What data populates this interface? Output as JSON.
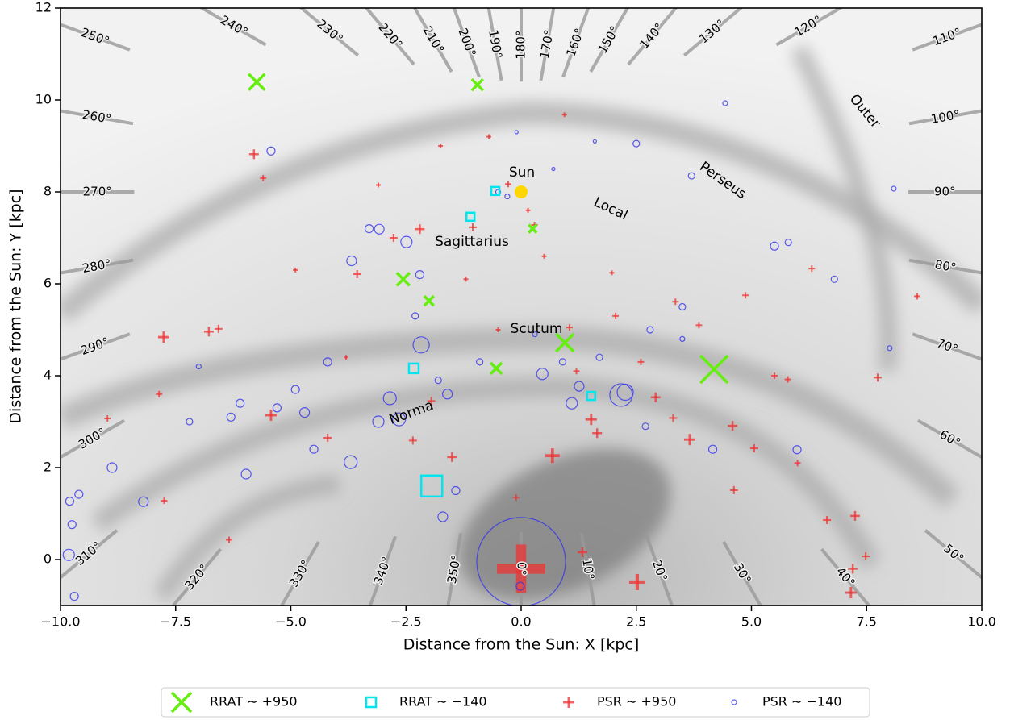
{
  "chart_data": {
    "type": "scatter",
    "xlabel": "Distance from the Sun: X [kpc]",
    "ylabel": "Distance from the Sun: Y [kpc]",
    "xlim": [
      -10,
      10
    ],
    "ylim": [
      -1,
      12
    ],
    "xticks": [
      {
        "value": -10,
        "label": "−10.0"
      },
      {
        "value": -7.5,
        "label": "−7.5"
      },
      {
        "value": -5,
        "label": "−5.0"
      },
      {
        "value": -2.5,
        "label": "−2.5"
      },
      {
        "value": 0,
        "label": "0.0"
      },
      {
        "value": 2.5,
        "label": "2.5"
      },
      {
        "value": 5,
        "label": "5.0"
      },
      {
        "value": 7.5,
        "label": "7.5"
      },
      {
        "value": 10,
        "label": "10.0"
      }
    ],
    "yticks": [
      0,
      2,
      4,
      6,
      8,
      10,
      12
    ],
    "legend": "bottom",
    "sun": {
      "label": "Sun",
      "x": 0,
      "y": 8,
      "color": "#ffd700"
    },
    "arm_labels": [
      "Local",
      "Perseus",
      "Sagittarius",
      "Scutum",
      "Norma",
      "Outer"
    ],
    "longitudes": [
      {
        "value": 0,
        "label": "0°"
      },
      {
        "value": 10,
        "label": "10°"
      },
      {
        "value": 20,
        "label": "20°"
      },
      {
        "value": 30,
        "label": "30°"
      },
      {
        "value": 40,
        "label": "40°"
      },
      {
        "value": 50,
        "label": "50°"
      },
      {
        "value": 60,
        "label": "60°"
      },
      {
        "value": 70,
        "label": "70°"
      },
      {
        "value": 80,
        "label": "80°"
      },
      {
        "value": 90,
        "label": "90°"
      },
      {
        "value": 100,
        "label": "100°"
      },
      {
        "value": 110,
        "label": "110°"
      },
      {
        "value": 120,
        "label": "120°"
      },
      {
        "value": 130,
        "label": "130°"
      },
      {
        "value": 140,
        "label": "140°"
      },
      {
        "value": 150,
        "label": "150°"
      },
      {
        "value": 160,
        "label": "160°"
      },
      {
        "value": 170,
        "label": "170°"
      },
      {
        "value": 180,
        "label": "180°"
      },
      {
        "value": 190,
        "label": "190°"
      },
      {
        "value": 200,
        "label": "200°"
      },
      {
        "value": 210,
        "label": "210°"
      },
      {
        "value": 220,
        "label": "220°"
      },
      {
        "value": 230,
        "label": "230°"
      },
      {
        "value": 240,
        "label": "240°"
      },
      {
        "value": 250,
        "label": "250°"
      },
      {
        "value": 260,
        "label": "260°"
      },
      {
        "value": 270,
        "label": "270°"
      },
      {
        "value": 280,
        "label": "280°"
      },
      {
        "value": 290,
        "label": "290°"
      },
      {
        "value": 300,
        "label": "300°"
      },
      {
        "value": 310,
        "label": "310°"
      },
      {
        "value": 320,
        "label": "320°"
      },
      {
        "value": 330,
        "label": "330°"
      },
      {
        "value": 340,
        "label": "340°"
      },
      {
        "value": 350,
        "label": "350°"
      }
    ],
    "series": [
      {
        "name": "RRAT ∼ +950",
        "marker": "x",
        "color": "#66ee11",
        "x": [
          -5.74,
          -0.95,
          -2.56,
          -2.0,
          -0.54,
          0.95,
          4.19,
          0.25
        ],
        "values": [
          10.39,
          10.33,
          6.1,
          5.63,
          4.16,
          4.72,
          4.14,
          7.2
        ],
        "sizes": [
          10,
          7,
          8,
          6,
          7,
          11,
          17,
          5
        ]
      },
      {
        "name": "RRAT ∼ −140",
        "marker": "square",
        "color": "#00e5ee",
        "x": [
          -0.56,
          -1.1,
          -1.94,
          -2.33,
          1.52
        ],
        "values": [
          8.02,
          7.46,
          1.6,
          4.16,
          3.56
        ],
        "sizes": [
          5,
          5,
          13,
          6,
          5
        ]
      },
      {
        "name": "PSR ∼ +950",
        "marker": "plus",
        "color": "#ee3333",
        "x": [
          0,
          2.52,
          0.68,
          1.33,
          7.25,
          7.16,
          7.48,
          7.2,
          -7.76,
          -6.78,
          -6.57,
          -5.8,
          -5.43,
          -3.56,
          -2.77,
          -2.2,
          -1.5,
          -1.05,
          1.52,
          1.65,
          2.92,
          3.66,
          4.59,
          5.06,
          7.74,
          5.79,
          6.64,
          4.62,
          3.3,
          -4.2,
          -2.35,
          -1.95,
          -7.86,
          -7.75,
          -8.98,
          -6.34,
          -0.11,
          1.05,
          2.05,
          3.35,
          0.29,
          -0.28,
          0.15,
          -0.7,
          0.94,
          1.97,
          3.86,
          4.87,
          6.31,
          8.6,
          6.0,
          -3.1,
          -1.75,
          -0.5,
          2.6,
          -5.6,
          -4.9,
          5.5,
          -3.8,
          1.2,
          -1.2,
          0.5
        ],
        "values": [
          -0.2,
          -0.49,
          2.26,
          0.16,
          0.95,
          -0.72,
          0.07,
          -0.2,
          4.84,
          4.96,
          5.02,
          8.82,
          3.14,
          6.21,
          7.0,
          7.19,
          2.23,
          7.23,
          3.05,
          2.75,
          3.53,
          2.61,
          2.91,
          2.42,
          3.96,
          3.92,
          0.86,
          1.51,
          3.08,
          2.65,
          2.59,
          3.45,
          3.6,
          1.28,
          3.07,
          0.43,
          1.35,
          5.05,
          5.3,
          5.61,
          7.28,
          8.17,
          7.6,
          9.2,
          9.68,
          6.24,
          5.1,
          5.75,
          6.33,
          5.73,
          2.1,
          8.15,
          9.0,
          5.0,
          4.3,
          8.3,
          6.3,
          4.0,
          4.4,
          4.1,
          6.1,
          6.6
        ],
        "sizes": [
          30,
          10,
          9,
          6,
          6,
          7,
          5,
          6,
          7,
          6,
          5,
          6,
          7,
          5,
          5,
          6,
          6,
          5,
          7,
          6,
          6,
          7,
          6,
          5,
          5,
          4,
          5,
          5,
          5,
          5,
          5,
          5,
          4,
          4,
          4,
          4,
          4,
          4,
          4,
          4,
          4,
          4,
          3,
          3,
          3,
          3,
          4,
          4,
          4,
          4,
          4,
          3,
          3,
          3,
          4,
          4,
          3,
          4,
          3,
          4,
          3,
          3
        ]
      },
      {
        "name": "PSR ∼ −140",
        "marker": "circle",
        "color": "#3333ee",
        "x": [
          0,
          -0.02,
          2.17,
          2.26,
          -2.17,
          -3.7,
          -2.85,
          -2.65,
          -3.1,
          -9.82,
          -8.88,
          -8.2,
          -9.7,
          -9.8,
          -9.6,
          -9.75,
          -5.97,
          -5.43,
          -3.68,
          -3.08,
          -2.49,
          0.46,
          1.26,
          5.5,
          8.09,
          4.43,
          2.5,
          -1.7,
          -1.42,
          -4.5,
          -4.7,
          -4.2,
          5.99,
          4.16,
          -6.3,
          -6.1,
          -5.3,
          -4.9,
          -2.3,
          -1.6,
          -1.8,
          0.9,
          1.7,
          2.8,
          3.5,
          5.8,
          6.8,
          8.0,
          -0.5,
          -0.3,
          0.7,
          1.6,
          -0.1,
          3.7,
          -3.3,
          -2.2,
          -0.9,
          0.3,
          -7.0,
          -7.2,
          3.5,
          1.1,
          2.7
        ],
        "values": [
          -0.05,
          -0.58,
          3.58,
          3.64,
          4.67,
          2.12,
          3.51,
          3.05,
          3.0,
          0.1,
          2.0,
          1.26,
          -0.8,
          1.27,
          1.42,
          0.76,
          1.86,
          8.89,
          6.5,
          7.19,
          6.91,
          4.04,
          3.77,
          6.82,
          8.07,
          9.93,
          9.05,
          0.93,
          1.5,
          2.4,
          3.2,
          4.3,
          2.39,
          2.4,
          3.1,
          3.4,
          3.3,
          3.7,
          5.3,
          3.6,
          3.9,
          4.3,
          4.4,
          5.0,
          5.5,
          6.9,
          6.1,
          4.6,
          8.0,
          7.9,
          8.5,
          9.1,
          9.3,
          8.35,
          7.2,
          6.2,
          4.3,
          4.9,
          4.2,
          3.0,
          4.8,
          3.4,
          2.9
        ],
        "sizes": [
          55,
          5,
          14,
          10,
          10,
          8,
          8,
          8,
          7,
          7,
          6,
          6,
          5,
          5,
          5,
          5,
          6,
          5,
          6,
          6,
          7,
          7,
          6,
          5,
          3,
          3,
          4,
          6,
          5,
          5,
          6,
          5,
          5,
          5,
          5,
          5,
          5,
          5,
          4,
          6,
          4,
          4,
          4,
          4,
          4,
          4,
          4,
          3,
          3,
          3,
          2,
          2,
          2,
          4,
          5,
          5,
          4,
          3,
          3,
          4,
          3,
          7,
          4
        ]
      }
    ]
  }
}
